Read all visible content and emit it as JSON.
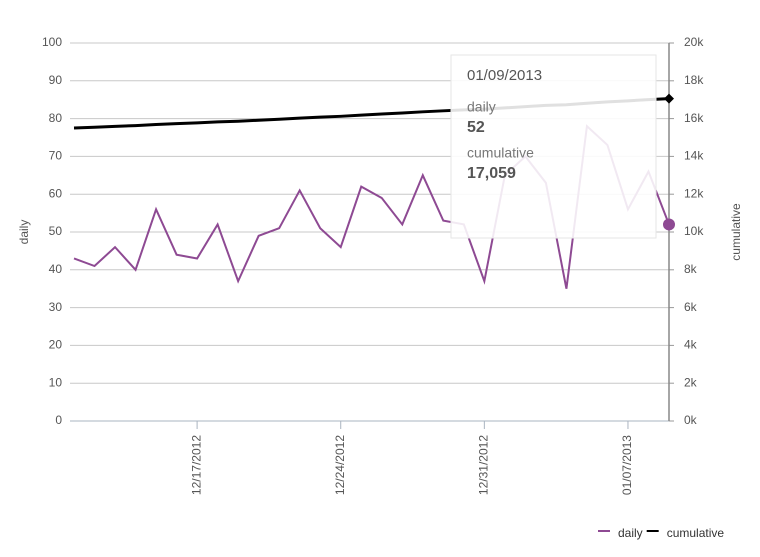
{
  "chart_data": {
    "type": "line",
    "x": [
      "12/11/2012",
      "12/12/2012",
      "12/13/2012",
      "12/14/2012",
      "12/15/2012",
      "12/16/2012",
      "12/17/2012",
      "12/18/2012",
      "12/19/2012",
      "12/20/2012",
      "12/21/2012",
      "12/22/2012",
      "12/23/2012",
      "12/24/2012",
      "12/25/2012",
      "12/26/2012",
      "12/27/2012",
      "12/28/2012",
      "12/29/2012",
      "12/30/2012",
      "12/31/2012",
      "01/01/2013",
      "01/02/2013",
      "01/03/2013",
      "01/04/2013",
      "01/05/2013",
      "01/06/2013",
      "01/07/2013",
      "01/08/2013",
      "01/09/2013"
    ],
    "xticks": [
      "12/17/2012",
      "12/24/2012",
      "12/31/2012",
      "01/07/2013"
    ],
    "series": [
      {
        "name": "daily",
        "color": "#8e4a93",
        "axis": "y",
        "values": [
          43,
          41,
          46,
          40,
          56,
          44,
          43,
          52,
          37,
          49,
          51,
          61,
          51,
          46,
          62,
          59,
          52,
          65,
          53,
          52,
          37,
          65,
          70,
          63,
          35,
          78,
          73,
          56,
          66,
          52
        ]
      },
      {
        "name": "cumulative",
        "color": "#000000",
        "axis": "y2",
        "values": [
          15504,
          15545,
          15591,
          15631,
          15687,
          15731,
          15774,
          15826,
          15863,
          15912,
          15963,
          16024,
          16075,
          16121,
          16183,
          16242,
          16294,
          16359,
          16412,
          16464,
          16501,
          16566,
          16636,
          16699,
          16734,
          16812,
          16885,
          16941,
          17007,
          17059
        ]
      }
    ],
    "ylabel": "daily",
    "y2label": "cumulative",
    "ylim": [
      0,
      100
    ],
    "yticks": [
      0,
      10,
      20,
      30,
      40,
      50,
      60,
      70,
      80,
      90,
      100
    ],
    "y2lim": [
      0,
      20000
    ],
    "y2ticks": [
      {
        "value": 0,
        "label": "0k"
      },
      {
        "value": 2000,
        "label": "2k"
      },
      {
        "value": 4000,
        "label": "4k"
      },
      {
        "value": 6000,
        "label": "6k"
      },
      {
        "value": 8000,
        "label": "8k"
      },
      {
        "value": 10000,
        "label": "10k"
      },
      {
        "value": 12000,
        "label": "12k"
      },
      {
        "value": 14000,
        "label": "14k"
      },
      {
        "value": 16000,
        "label": "16k"
      },
      {
        "value": 18000,
        "label": "18k"
      },
      {
        "value": 20000,
        "label": "20k"
      }
    ],
    "grid": true,
    "legend": "bottom-right",
    "tooltip": {
      "title": "01/09/2013",
      "items": [
        {
          "label": "daily",
          "value": "52"
        },
        {
          "label": "cumulative",
          "value": "17,059"
        }
      ]
    }
  }
}
